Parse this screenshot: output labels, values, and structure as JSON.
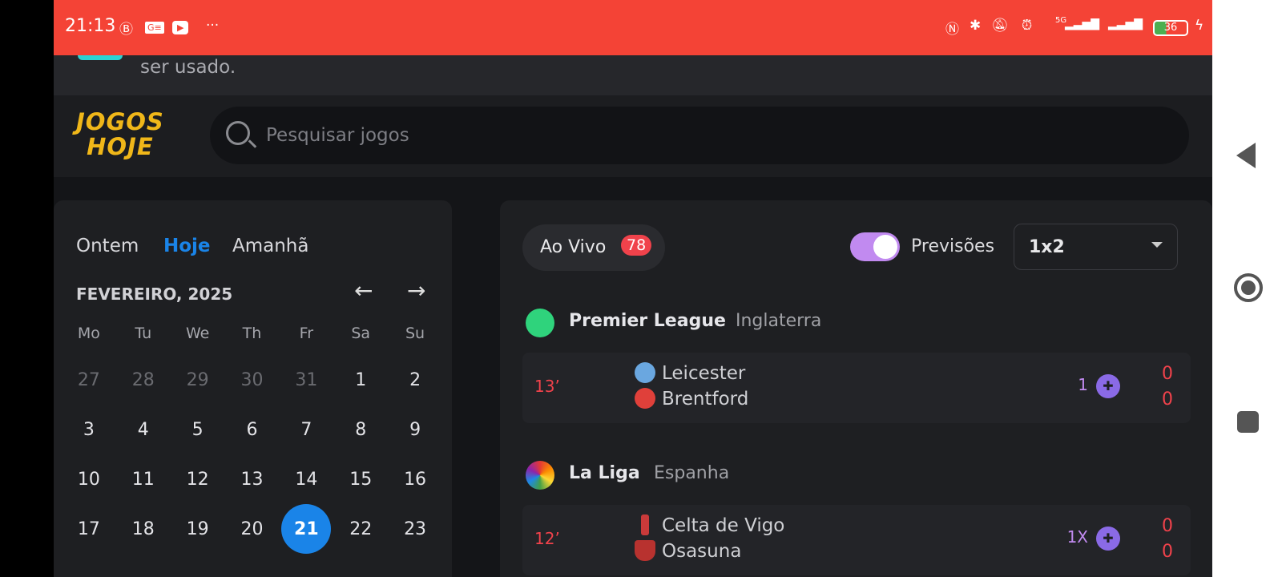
{
  "status_bar": {
    "time": "21:13",
    "battery": "36",
    "network": "5G",
    "icons": [
      "whatsapp-business-icon",
      "news-icon",
      "youtube-icon",
      "more-icon",
      "nfc-icon",
      "bluetooth-icon",
      "mute-icon",
      "alarm-icon",
      "signal-icon",
      "battery-icon",
      "charging-icon"
    ],
    "color": "#f44336"
  },
  "banner": {
    "text": "ser usado."
  },
  "header": {
    "logo": "JOGOS HOJE",
    "logo_line1": "JOGOS",
    "logo_line2": "HOJE",
    "search_placeholder": "Pesquisar jogos"
  },
  "calendar": {
    "tabs": [
      "Ontem",
      "Hoje",
      "Amanhã"
    ],
    "active_tab": "Hoje",
    "month": "FEVEREIRO, 2025",
    "weekdays": [
      "Mo",
      "Tu",
      "We",
      "Th",
      "Fr",
      "Sa",
      "Su"
    ],
    "weeks": [
      [
        "27",
        "28",
        "29",
        "30",
        "31",
        "1",
        "2"
      ],
      [
        "3",
        "4",
        "5",
        "6",
        "7",
        "8",
        "9"
      ],
      [
        "10",
        "11",
        "12",
        "13",
        "14",
        "15",
        "16"
      ],
      [
        "17",
        "18",
        "19",
        "20",
        "21",
        "22",
        "23"
      ]
    ],
    "selected": "21",
    "accent": "#1a84e8"
  },
  "matches": {
    "live_label": "Ao Vivo",
    "live_count": "78",
    "predictions_label": "Previsões",
    "predictions_on": true,
    "market": "1x2",
    "leagues": [
      {
        "name": "Premier League",
        "country": "Inglaterra",
        "games": [
          {
            "minute": "13’",
            "home": "Leicester",
            "away": "Brentford",
            "tip": "1",
            "home_score": "0",
            "away_score": "0"
          }
        ]
      },
      {
        "name": "La Liga",
        "country": "Espanha",
        "games": [
          {
            "minute": "12’",
            "home": "Celta de Vigo",
            "away": "Osasuna",
            "tip": "1X",
            "home_score": "0",
            "away_score": "0"
          }
        ]
      }
    ]
  }
}
